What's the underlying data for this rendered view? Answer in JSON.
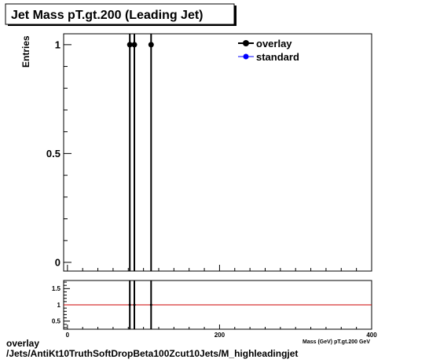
{
  "title": "Jet Mass pT.gt.200 (Leading Jet)",
  "footer": {
    "line1": "overlay",
    "line2": "/Jets/AntiKt10TruthSoftDropBeta100Zcut10Jets/M_highleadingjet"
  },
  "chart_data": [
    {
      "type": "scatter",
      "panel": "main",
      "ylabel": "Entries",
      "xlim": [
        -5,
        400
      ],
      "ylim": [
        -0.04,
        1.05
      ],
      "x_ticks": [
        0,
        200,
        400
      ],
      "x_tick_labels": [
        "",
        "",
        ""
      ],
      "y_ticks": [
        0,
        0.5,
        1
      ],
      "y_tick_labels": [
        "0",
        "0.5",
        "1"
      ],
      "legend_position": "top-right",
      "series": [
        {
          "name": "overlay",
          "color": "#000000",
          "x": [
            82,
            88,
            110
          ],
          "y": [
            1,
            1,
            1
          ],
          "error_bars": true
        },
        {
          "name": "standard",
          "color": "#0000ff",
          "x": [],
          "y": []
        }
      ]
    },
    {
      "type": "line",
      "panel": "ratio",
      "xlabel": "Mass (GeV) pT.gt.200 GeV",
      "xlim": [
        -5,
        400
      ],
      "ylim": [
        0.25,
        1.75
      ],
      "x_ticks": [
        0,
        200,
        400
      ],
      "x_tick_labels": [
        "0",
        "200",
        "400"
      ],
      "y_ticks": [
        0.5,
        1,
        1.5
      ],
      "y_tick_labels": [
        "0.5",
        "1",
        "1.5"
      ],
      "reference_line": {
        "y": 1,
        "color": "#cc0000"
      },
      "series": [
        {
          "name": "",
          "color": "#000000",
          "x": [
            82,
            88,
            110
          ],
          "y": [
            1,
            1,
            1
          ],
          "error_bars": true
        }
      ]
    }
  ]
}
